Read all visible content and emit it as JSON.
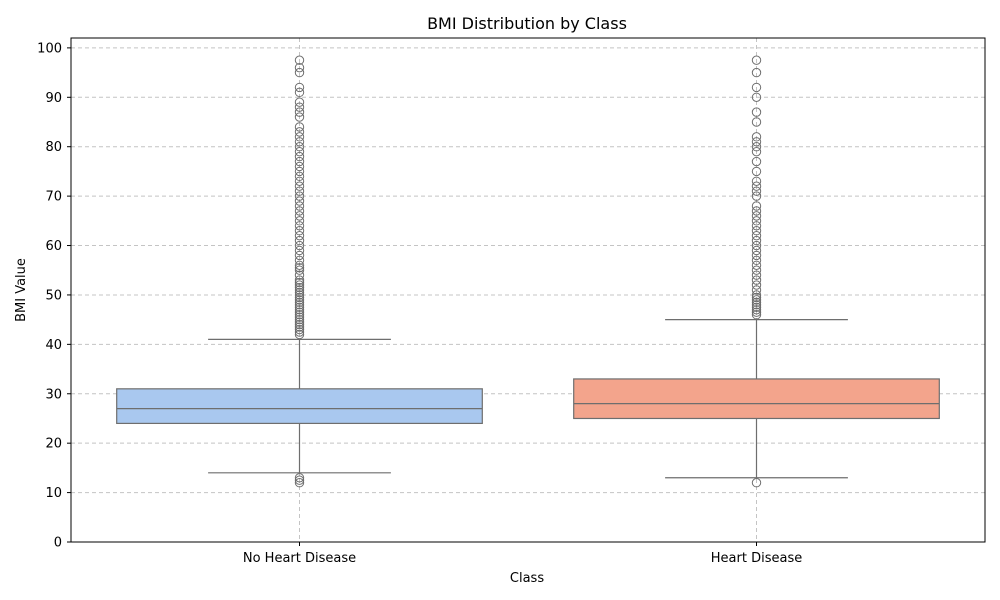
{
  "chart_data": {
    "type": "box",
    "title": "BMI Distribution by Class",
    "xlabel": "Class",
    "ylabel": "BMI Value",
    "ylim": [
      0,
      102
    ],
    "yticks": [
      0,
      10,
      20,
      30,
      40,
      50,
      60,
      70,
      80,
      90,
      100
    ],
    "grid": true,
    "categories": [
      "No Heart Disease",
      "Heart Disease"
    ],
    "boxes": [
      {
        "category": "No Heart Disease",
        "whisker_low": 14,
        "q1": 24,
        "median": 27,
        "q3": 31,
        "whisker_high": 41,
        "color": "#a9c8ef",
        "outliers": [
          12,
          12.5,
          13,
          42,
          42.5,
          43,
          43.5,
          44,
          44.5,
          45,
          45.5,
          46,
          46.5,
          47,
          47.5,
          48,
          48.5,
          49,
          49.5,
          50,
          50.5,
          51,
          51.5,
          52,
          52.5,
          53,
          54,
          55,
          55.5,
          56,
          57,
          58,
          59,
          60,
          61,
          62,
          63,
          64,
          65,
          66,
          67,
          68,
          69,
          70,
          71,
          72,
          73,
          74,
          75,
          76,
          77,
          78,
          79,
          80,
          81,
          82,
          83,
          84,
          86,
          87,
          88,
          89,
          91,
          92,
          95,
          96,
          97.5
        ]
      },
      {
        "category": "Heart Disease",
        "whisker_low": 13,
        "q1": 25,
        "median": 28,
        "q3": 33,
        "whisker_high": 45,
        "color": "#f3a48c",
        "outliers": [
          12,
          46,
          46.5,
          47,
          47.5,
          48,
          48.5,
          49,
          49.5,
          50,
          51,
          52,
          53,
          54,
          55,
          56,
          57,
          58,
          59,
          60,
          61,
          62,
          63,
          64,
          65,
          66,
          67,
          68,
          70,
          71,
          72,
          73,
          75,
          77,
          79,
          80,
          81,
          82,
          85,
          87,
          90,
          92,
          95,
          97.5
        ]
      }
    ]
  }
}
